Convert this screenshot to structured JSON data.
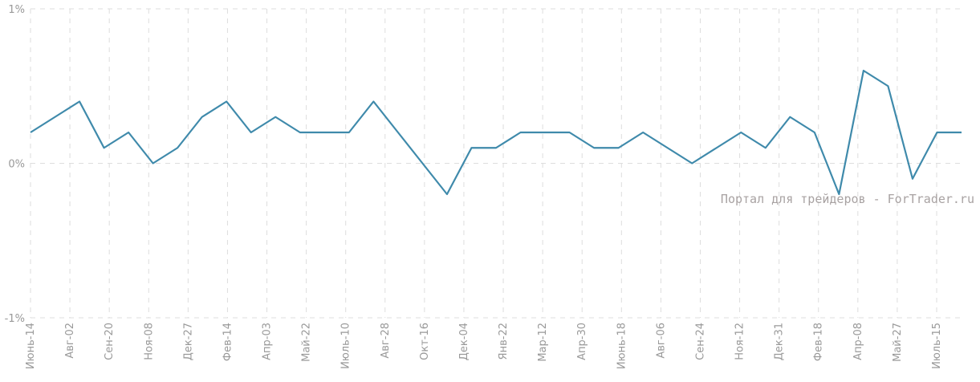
{
  "chart_data": {
    "type": "line",
    "ylim": [
      -1,
      1
    ],
    "ytick_labels": [
      "1%",
      "0%",
      "-1%"
    ],
    "ytick_values": [
      1,
      0,
      -1
    ],
    "xtick_labels": [
      "Июнь-14",
      "Авг-02",
      "Сен-20",
      "Ноя-08",
      "Дек-27",
      "Фев-14",
      "Апр-03",
      "Май-22",
      "Июль-10",
      "Авг-28",
      "Окт-16",
      "Дек-04",
      "Янв-22",
      "Мар-12",
      "Апр-30",
      "Июнь-18",
      "Авг-06",
      "Сен-24",
      "Ноя-12",
      "Дек-31",
      "Фев-18",
      "Апр-08",
      "Май-27",
      "Июль-15"
    ],
    "series": [
      {
        "color": "#3f8aab",
        "points": [
          [
            "Июнь-14",
            0.2
          ],
          [
            "",
            0.3
          ],
          [
            "",
            0.4
          ],
          [
            "Сен-20",
            0.1
          ],
          [
            "",
            0.2
          ],
          [
            "Ноя-08",
            0.0
          ],
          [
            "",
            0.1
          ],
          [
            "",
            0.3
          ],
          [
            "Фев-14",
            0.4
          ],
          [
            "",
            0.2
          ],
          [
            "",
            0.3
          ],
          [
            "Май-22",
            0.2
          ],
          [
            "",
            0.2
          ],
          [
            "Июль-10",
            0.2
          ],
          [
            "",
            0.4
          ],
          [
            "",
            0.2
          ],
          [
            "Окт-16",
            0.0
          ],
          [
            "",
            -0.2
          ],
          [
            "Дек-04",
            0.1
          ],
          [
            "Янв-22",
            0.1
          ],
          [
            "",
            0.2
          ],
          [
            "",
            0.2
          ],
          [
            "",
            0.2
          ],
          [
            "",
            0.1
          ],
          [
            "Июнь-18",
            0.1
          ],
          [
            "",
            0.2
          ],
          [
            "",
            0.1
          ],
          [
            "Сен-24",
            0.0
          ],
          [
            "Ноя-12",
            0.1
          ],
          [
            "",
            0.2
          ],
          [
            "",
            0.1
          ],
          [
            "",
            0.3
          ],
          [
            "Фев-18",
            0.2
          ],
          [
            "",
            -0.2
          ],
          [
            "",
            0.6
          ],
          [
            "",
            0.5
          ],
          [
            "",
            -0.1
          ],
          [
            "Июль-15",
            0.2
          ],
          [
            "",
            0.2
          ]
        ]
      }
    ],
    "grid": true,
    "watermark": "Портал для трейдеров - ForTrader.ru"
  }
}
